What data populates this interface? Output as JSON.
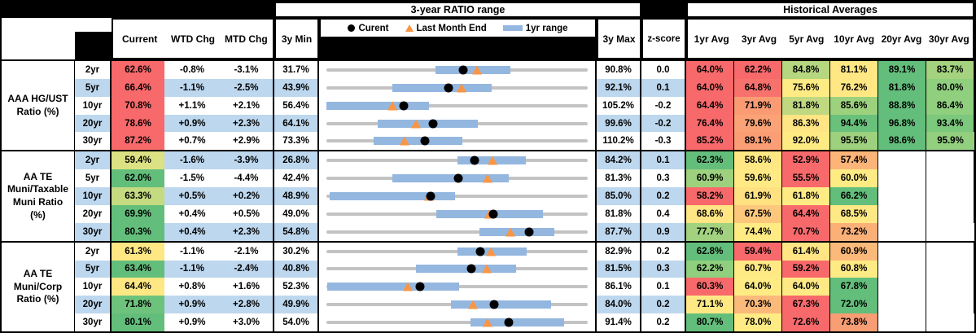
{
  "header": {
    "chart_section_title": "3-year RATIO range",
    "hist_section_title": "Historical Averages",
    "col_current": "Current",
    "col_wtd_chg": "WTD Chg",
    "col_mtd_chg": "MTD Chg",
    "col_3y_min": "3y Min",
    "col_3y_max": "3y Max",
    "col_zscore": "z-score",
    "hist_cols": [
      "1yr Avg",
      "3yr Avg",
      "5yr Avg",
      "10yr Avg",
      "20yr Avg",
      "30yr Avg"
    ],
    "legend": {
      "current": "Curent",
      "last_month_end": "Last Month End",
      "one_yr_range": "1yr range"
    }
  },
  "colors": {
    "stripe_blue": "#BDD7EE",
    "range_bar_blue": "#94B7E0",
    "track_gray": "#C3C3C3",
    "marker_orange": "#F79646",
    "marker_black": "#000000",
    "scale_red": "#F8696B",
    "scale_yellow": "#FFEB84",
    "scale_green": "#63BE7B"
  },
  "chart_data": {
    "type": "table",
    "title": "3-year RATIO range",
    "note": "Each row contains a bullet/range chart: gray track spans 3y Min to 3y Max, blue bar is 1yr range, black dot is Current, orange triangle is Last Month End. Values in percent.",
    "groups": [
      {
        "label": "AAA HG/UST\nRatio (%)",
        "rows": [
          {
            "tenor": "2yr",
            "current": "62.6%",
            "current_bg": "#F8696B",
            "wtd_chg": "-0.8%",
            "mtd_chg": "-3.1%",
            "min_3y": "31.7%",
            "max_3y": "90.8%",
            "z_score": "0.0",
            "range": {
              "min": 31.7,
              "max": 90.8,
              "bar_lo": 56.4,
              "bar_hi": 73.4,
              "current": 62.6,
              "last_month_end": 65.7
            },
            "hist": [
              {
                "v": "64.0%",
                "bg": "#F8696B"
              },
              {
                "v": "62.2%",
                "bg": "#F8696B"
              },
              {
                "v": "84.8%",
                "bg": "#B5D780"
              },
              {
                "v": "81.1%",
                "bg": "#FFE884"
              },
              {
                "v": "89.1%",
                "bg": "#63BE7B"
              },
              {
                "v": "83.7%",
                "bg": "#A4D27F"
              }
            ]
          },
          {
            "tenor": "5yr",
            "current": "66.4%",
            "current_bg": "#F8696B",
            "wtd_chg": "-1.1%",
            "mtd_chg": "-2.5%",
            "min_3y": "43.9%",
            "max_3y": "92.1%",
            "z_score": "0.1",
            "range": {
              "min": 43.9,
              "max": 92.1,
              "bar_lo": 56.0,
              "bar_hi": 74.4,
              "current": 66.4,
              "last_month_end": 68.9
            },
            "hist": [
              {
                "v": "64.0%",
                "bg": "#F8696B"
              },
              {
                "v": "64.8%",
                "bg": "#F8726D"
              },
              {
                "v": "75.6%",
                "bg": "#FFEB84"
              },
              {
                "v": "76.2%",
                "bg": "#FFE784"
              },
              {
                "v": "81.8%",
                "bg": "#63BE7B"
              },
              {
                "v": "80.0%",
                "bg": "#8FCF7E"
              }
            ]
          },
          {
            "tenor": "10yr",
            "current": "70.8%",
            "current_bg": "#F8696B",
            "wtd_chg": "+1.1%",
            "mtd_chg": "+2.1%",
            "min_3y": "56.4%",
            "max_3y": "105.2%",
            "z_score": "-0.2",
            "range": {
              "min": 56.4,
              "max": 105.2,
              "bar_lo": 56.4,
              "bar_hi": 75.6,
              "current": 70.8,
              "last_month_end": 68.7
            },
            "hist": [
              {
                "v": "64.4%",
                "bg": "#F8696B"
              },
              {
                "v": "71.9%",
                "bg": "#FA9B74"
              },
              {
                "v": "81.8%",
                "bg": "#C0D981"
              },
              {
                "v": "85.6%",
                "bg": "#9DD17E"
              },
              {
                "v": "88.8%",
                "bg": "#63BE7B"
              },
              {
                "v": "86.4%",
                "bg": "#8FCF7E"
              }
            ]
          },
          {
            "tenor": "20yr",
            "current": "78.6%",
            "current_bg": "#F8696B",
            "wtd_chg": "+0.9%",
            "mtd_chg": "+2.3%",
            "min_3y": "64.1%",
            "max_3y": "99.6%",
            "z_score": "-0.2",
            "range": {
              "min": 64.1,
              "max": 99.6,
              "bar_lo": 71.1,
              "bar_hi": 84.7,
              "current": 78.6,
              "last_month_end": 76.3
            },
            "hist": [
              {
                "v": "76.4%",
                "bg": "#F8696B"
              },
              {
                "v": "79.6%",
                "bg": "#FBA376"
              },
              {
                "v": "86.3%",
                "bg": "#FFE583"
              },
              {
                "v": "94.4%",
                "bg": "#6AC17C"
              },
              {
                "v": "96.8%",
                "bg": "#63BE7B"
              },
              {
                "v": "93.4%",
                "bg": "#7CC87D"
              }
            ]
          },
          {
            "tenor": "30yr",
            "current": "87.2%",
            "current_bg": "#F8696B",
            "wtd_chg": "+0.7%",
            "mtd_chg": "+2.9%",
            "min_3y": "73.3%",
            "max_3y": "110.2%",
            "z_score": "-0.3",
            "range": {
              "min": 73.3,
              "max": 110.2,
              "bar_lo": 80.0,
              "bar_hi": 92.5,
              "current": 87.2,
              "last_month_end": 84.3
            },
            "hist": [
              {
                "v": "85.2%",
                "bg": "#F8696B"
              },
              {
                "v": "89.1%",
                "bg": "#FB9E75"
              },
              {
                "v": "92.0%",
                "bg": "#FFEB84"
              },
              {
                "v": "95.5%",
                "bg": "#9ED17E"
              },
              {
                "v": "98.6%",
                "bg": "#63BE7B"
              },
              {
                "v": "95.9%",
                "bg": "#92CF7E"
              }
            ]
          }
        ]
      },
      {
        "label": "AA TE\nMuni/Taxable\nMuni Ratio\n(%)",
        "rows": [
          {
            "tenor": "2yr",
            "current": "59.4%",
            "current_bg": "#DCE283",
            "wtd_chg": "-1.6%",
            "mtd_chg": "-3.9%",
            "min_3y": "26.8%",
            "max_3y": "84.2%",
            "z_score": "0.1",
            "range": {
              "min": 26.8,
              "max": 84.2,
              "bar_lo": 55.5,
              "bar_hi": 70.6,
              "current": 59.4,
              "last_month_end": 63.3
            },
            "hist": [
              {
                "v": "62.3%",
                "bg": "#63BE7B"
              },
              {
                "v": "58.6%",
                "bg": "#FFE884"
              },
              {
                "v": "52.9%",
                "bg": "#F8696B"
              },
              {
                "v": "57.4%",
                "bg": "#FCB478"
              },
              {
                "v": "",
                "bg": ""
              },
              {
                "v": "",
                "bg": ""
              }
            ]
          },
          {
            "tenor": "5yr",
            "current": "62.0%",
            "current_bg": "#63BE7B",
            "wtd_chg": "-1.5%",
            "mtd_chg": "-4.4%",
            "min_3y": "42.4%",
            "max_3y": "81.3%",
            "z_score": "0.3",
            "range": {
              "min": 42.4,
              "max": 81.3,
              "bar_lo": 52.2,
              "bar_hi": 69.6,
              "current": 62.0,
              "last_month_end": 66.4
            },
            "hist": [
              {
                "v": "60.9%",
                "bg": "#9DD17E"
              },
              {
                "v": "59.6%",
                "bg": "#FFE984"
              },
              {
                "v": "55.5%",
                "bg": "#F8696B"
              },
              {
                "v": "60.0%",
                "bg": "#FFEB84"
              },
              {
                "v": "",
                "bg": ""
              },
              {
                "v": "",
                "bg": ""
              }
            ]
          },
          {
            "tenor": "10yr",
            "current": "63.3%",
            "current_bg": "#C4DB81",
            "wtd_chg": "+0.5%",
            "mtd_chg": "+0.2%",
            "min_3y": "48.9%",
            "max_3y": "85.0%",
            "z_score": "0.2",
            "range": {
              "min": 48.9,
              "max": 85.0,
              "bar_lo": 49.3,
              "bar_hi": 66.7,
              "current": 63.3,
              "last_month_end": 63.1
            },
            "hist": [
              {
                "v": "58.2%",
                "bg": "#F8696B"
              },
              {
                "v": "61.9%",
                "bg": "#FFE182"
              },
              {
                "v": "61.8%",
                "bg": "#FFEB84"
              },
              {
                "v": "66.2%",
                "bg": "#63BE7B"
              },
              {
                "v": "",
                "bg": ""
              },
              {
                "v": "",
                "bg": ""
              }
            ]
          },
          {
            "tenor": "20yr",
            "current": "69.9%",
            "current_bg": "#63BE7B",
            "wtd_chg": "+0.4%",
            "mtd_chg": "+0.5%",
            "min_3y": "49.0%",
            "max_3y": "81.8%",
            "z_score": "0.4",
            "range": {
              "min": 49.0,
              "max": 81.8,
              "bar_lo": 62.8,
              "bar_hi": 76.2,
              "current": 69.9,
              "last_month_end": 69.4
            },
            "hist": [
              {
                "v": "68.6%",
                "bg": "#FFE583"
              },
              {
                "v": "67.5%",
                "bg": "#FDC77C"
              },
              {
                "v": "64.4%",
                "bg": "#F8696B"
              },
              {
                "v": "68.5%",
                "bg": "#FFE984"
              },
              {
                "v": "",
                "bg": ""
              },
              {
                "v": "",
                "bg": ""
              }
            ]
          },
          {
            "tenor": "30yr",
            "current": "80.3%",
            "current_bg": "#63BE7B",
            "wtd_chg": "+0.4%",
            "mtd_chg": "+2.3%",
            "min_3y": "54.8%",
            "max_3y": "87.7%",
            "z_score": "0.9",
            "range": {
              "min": 54.8,
              "max": 87.7,
              "bar_lo": 74.1,
              "bar_hi": 83.5,
              "current": 80.3,
              "last_month_end": 78.0
            },
            "hist": [
              {
                "v": "77.7%",
                "bg": "#A2D27F"
              },
              {
                "v": "74.4%",
                "bg": "#FFEB84"
              },
              {
                "v": "70.7%",
                "bg": "#F8696B"
              },
              {
                "v": "73.2%",
                "bg": "#FBB078"
              },
              {
                "v": "",
                "bg": ""
              },
              {
                "v": "",
                "bg": ""
              }
            ]
          }
        ]
      },
      {
        "label": "AA TE\nMuni/Corp\nRatio (%)",
        "rows": [
          {
            "tenor": "2yr",
            "current": "61.3%",
            "current_bg": "#FFE884",
            "wtd_chg": "-1.1%",
            "mtd_chg": "-2.1%",
            "min_3y": "30.2%",
            "max_3y": "82.9%",
            "z_score": "0.2",
            "range": {
              "min": 30.2,
              "max": 82.9,
              "bar_lo": 56.6,
              "bar_hi": 70.6,
              "current": 61.3,
              "last_month_end": 63.4
            },
            "hist": [
              {
                "v": "62.8%",
                "bg": "#63BE7B"
              },
              {
                "v": "59.4%",
                "bg": "#F8696B"
              },
              {
                "v": "61.4%",
                "bg": "#FFE583"
              },
              {
                "v": "60.9%",
                "bg": "#FCBA7A"
              },
              {
                "v": "",
                "bg": ""
              },
              {
                "v": "",
                "bg": ""
              }
            ]
          },
          {
            "tenor": "5yr",
            "current": "63.4%",
            "current_bg": "#63BE7B",
            "wtd_chg": "-1.1%",
            "mtd_chg": "-2.4%",
            "min_3y": "40.8%",
            "max_3y": "81.5%",
            "z_score": "0.3",
            "range": {
              "min": 40.8,
              "max": 81.5,
              "bar_lo": 54.7,
              "bar_hi": 70.4,
              "current": 63.4,
              "last_month_end": 65.8
            },
            "hist": [
              {
                "v": "62.2%",
                "bg": "#8FCF7E"
              },
              {
                "v": "60.7%",
                "bg": "#FFE984"
              },
              {
                "v": "59.2%",
                "bg": "#F8696B"
              },
              {
                "v": "60.8%",
                "bg": "#FFEB84"
              },
              {
                "v": "",
                "bg": ""
              },
              {
                "v": "",
                "bg": ""
              }
            ]
          },
          {
            "tenor": "10yr",
            "current": "64.4%",
            "current_bg": "#FFE884",
            "wtd_chg": "+0.8%",
            "mtd_chg": "+1.6%",
            "min_3y": "52.3%",
            "max_3y": "86.1%",
            "z_score": "0.1",
            "range": {
              "min": 52.3,
              "max": 86.1,
              "bar_lo": 52.4,
              "bar_hi": 69.5,
              "current": 64.4,
              "last_month_end": 62.8
            },
            "hist": [
              {
                "v": "60.3%",
                "bg": "#F8696B"
              },
              {
                "v": "64.0%",
                "bg": "#FFEB84"
              },
              {
                "v": "64.0%",
                "bg": "#FFE984"
              },
              {
                "v": "67.8%",
                "bg": "#63BE7B"
              },
              {
                "v": "",
                "bg": ""
              },
              {
                "v": "",
                "bg": ""
              }
            ]
          },
          {
            "tenor": "20yr",
            "current": "71.8%",
            "current_bg": "#6EC37C",
            "wtd_chg": "+0.9%",
            "mtd_chg": "+2.8%",
            "min_3y": "49.9%",
            "max_3y": "84.0%",
            "z_score": "0.2",
            "range": {
              "min": 49.9,
              "max": 84.0,
              "bar_lo": 66.2,
              "bar_hi": 79.2,
              "current": 71.8,
              "last_month_end": 69.0
            },
            "hist": [
              {
                "v": "71.1%",
                "bg": "#FFE884"
              },
              {
                "v": "70.3%",
                "bg": "#FCBA7A"
              },
              {
                "v": "67.3%",
                "bg": "#F8696B"
              },
              {
                "v": "72.0%",
                "bg": "#63BE7B"
              },
              {
                "v": "",
                "bg": ""
              },
              {
                "v": "",
                "bg": ""
              }
            ]
          },
          {
            "tenor": "30yr",
            "current": "80.1%",
            "current_bg": "#63BE7B",
            "wtd_chg": "+0.9%",
            "mtd_chg": "+3.0%",
            "min_3y": "54.0%",
            "max_3y": "91.4%",
            "z_score": "0.2",
            "range": {
              "min": 54.0,
              "max": 91.4,
              "bar_lo": 74.6,
              "bar_hi": 88.0,
              "current": 80.1,
              "last_month_end": 77.1
            },
            "hist": [
              {
                "v": "80.7%",
                "bg": "#63BE7B"
              },
              {
                "v": "78.0%",
                "bg": "#FFEB84"
              },
              {
                "v": "72.6%",
                "bg": "#F8696B"
              },
              {
                "v": "73.8%",
                "bg": "#F99D74"
              },
              {
                "v": "",
                "bg": ""
              },
              {
                "v": "",
                "bg": ""
              }
            ]
          }
        ]
      }
    ]
  }
}
